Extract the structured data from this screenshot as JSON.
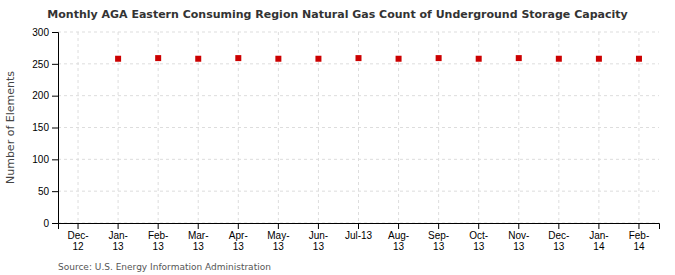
{
  "chart_data": {
    "type": "scatter",
    "title": "Monthly AGA Eastern Consuming Region Natural Gas Count of Underground Storage Capacity",
    "y_label": "Number of Elements",
    "source": "Source: U.S. Energy Information Administration",
    "categories": [
      "Dec-\n12",
      "Jan-\n13",
      "Feb-\n13",
      "Mar-\n13",
      "Apr-\n13",
      "May-\n13",
      "Jun-\n13",
      "Jul-13",
      "Aug-\n13",
      "Sep-\n13",
      "Oct-\n13",
      "Nov-\n13",
      "Dec-\n13",
      "Jan-\n14",
      "Feb-\n14"
    ],
    "values": [
      null,
      258,
      259,
      258,
      259,
      258,
      258,
      259,
      258,
      259,
      258,
      259,
      258,
      258,
      258
    ],
    "color": "#cc0000",
    "marker": "square",
    "ylim": [
      0,
      300
    ],
    "yticks": [
      0,
      50,
      100,
      150,
      200,
      250,
      300
    ],
    "grid": true
  }
}
